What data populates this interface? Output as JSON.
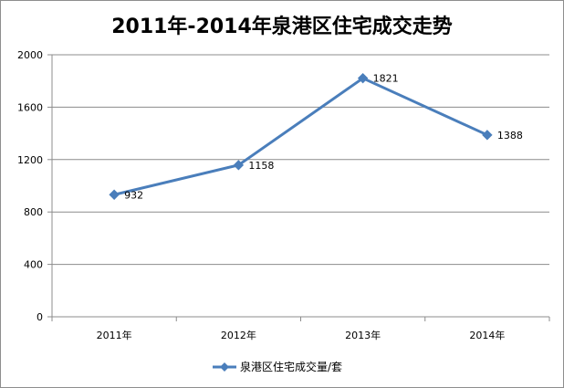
{
  "chart_data": {
    "type": "line",
    "title": "2011年-2014年泉港区住宅成交走势",
    "categories": [
      "2011年",
      "2012年",
      "2013年",
      "2014年"
    ],
    "series": [
      {
        "name": "泉港区住宅成交量/套",
        "values": [
          932,
          1158,
          1821,
          1388
        ],
        "color": "#4a7ebb",
        "marker": "diamond"
      }
    ],
    "ylim": [
      0,
      2000
    ],
    "yticks": [
      0,
      400,
      800,
      1200,
      1600,
      2000
    ],
    "data_labels": [
      "932",
      "1158",
      "1821",
      "1388"
    ],
    "grid": true,
    "legend_position": "bottom"
  }
}
